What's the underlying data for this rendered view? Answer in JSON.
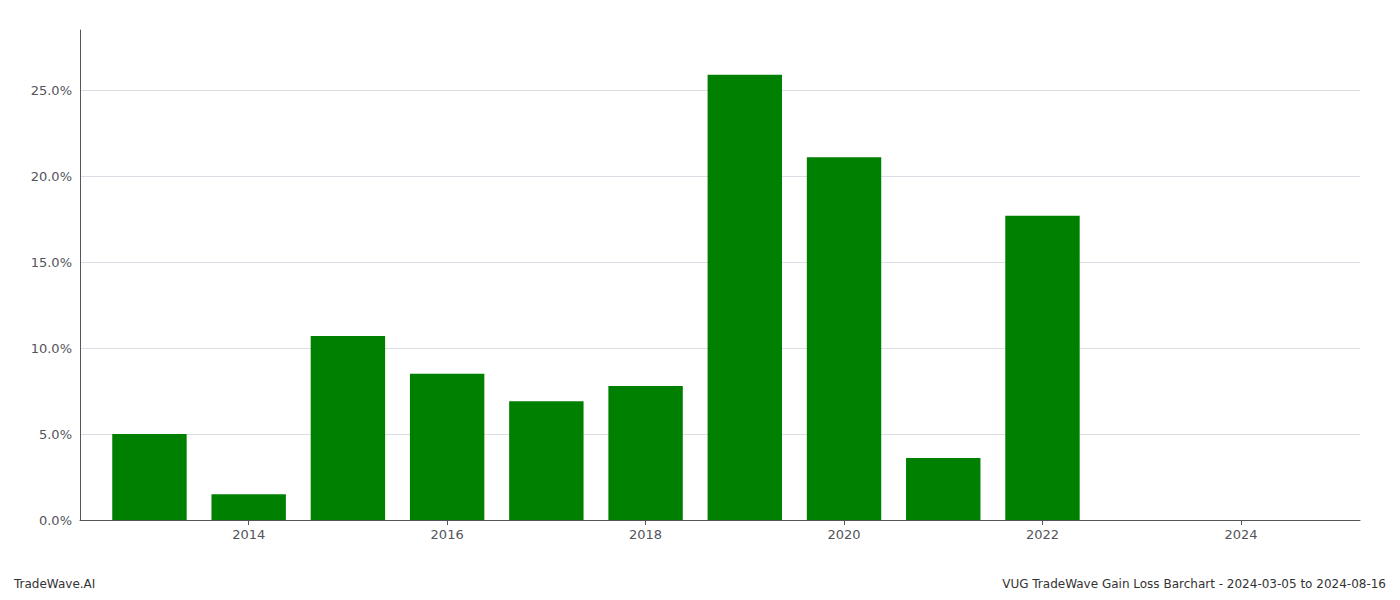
{
  "chart_data": {
    "type": "bar",
    "x": [
      2013,
      2014,
      2015,
      2016,
      2017,
      2018,
      2019,
      2020,
      2021,
      2022
    ],
    "values": [
      0.05,
      0.015,
      0.107,
      0.085,
      0.069,
      0.078,
      0.259,
      0.211,
      0.036,
      0.177
    ],
    "color": "#008000",
    "xlim": [
      2012.3,
      2025.2
    ],
    "xticks": [
      2014,
      2016,
      2018,
      2020,
      2022,
      2024
    ],
    "ylim": [
      0.0,
      0.285
    ],
    "yticks": [
      {
        "value": 0.0,
        "label": "0.0%"
      },
      {
        "value": 0.05,
        "label": "5.0%"
      },
      {
        "value": 0.1,
        "label": "10.0%"
      },
      {
        "value": 0.15,
        "label": "15.0%"
      },
      {
        "value": 0.2,
        "label": "20.0%"
      },
      {
        "value": 0.25,
        "label": "25.0%"
      }
    ],
    "grid": true,
    "annotations": [
      "TradeWave.AI",
      "VUG TradeWave Gain Loss Barchart - 2024-03-05 to 2024-08-16"
    ]
  }
}
